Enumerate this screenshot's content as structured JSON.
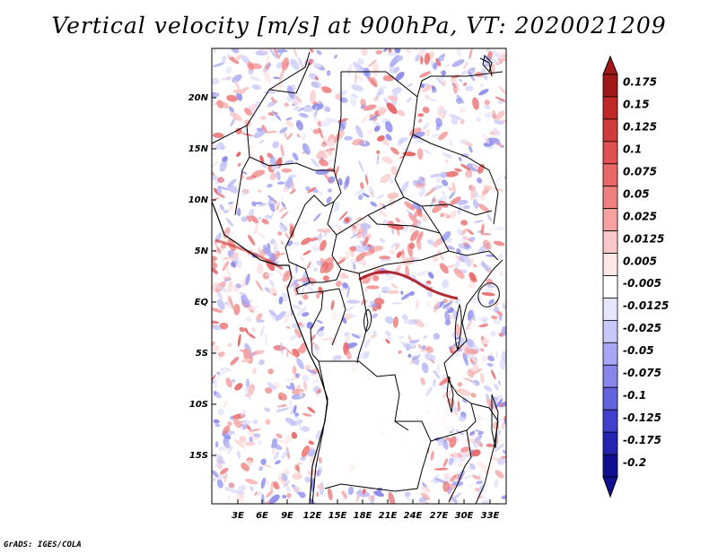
{
  "title": "Vertical velocity [m/s] at 900hPa, VT: 2020021209",
  "credit": "GrADS: IGES/COLA",
  "map": {
    "lat_labels": [
      "20N",
      "15N",
      "10N",
      "5N",
      "EQ",
      "5S",
      "10S",
      "15S"
    ],
    "lon_labels": [
      "3E",
      "6E",
      "9E",
      "12E",
      "15E",
      "18E",
      "21E",
      "24E",
      "27E",
      "30E",
      "33E"
    ]
  },
  "colorbar": {
    "labels": [
      "0.175",
      "0.15",
      "0.125",
      "0.1",
      "0.075",
      "0.05",
      "0.025",
      "0.0125",
      "0.005",
      "-0.005",
      "-0.0125",
      "-0.025",
      "-0.05",
      "-0.075",
      "-0.1",
      "-0.125",
      "-0.175",
      "-0.2"
    ],
    "colors": [
      "#a01818",
      "#c02828",
      "#d03c3c",
      "#e05050",
      "#e86868",
      "#f08080",
      "#f6a0a0",
      "#fac8c8",
      "#fde6e6",
      "#ffffff",
      "#e6e6fd",
      "#c8c8f8",
      "#a6a6f2",
      "#8686ec",
      "#6464e0",
      "#4040cc",
      "#2424b0",
      "#101090"
    ]
  }
}
